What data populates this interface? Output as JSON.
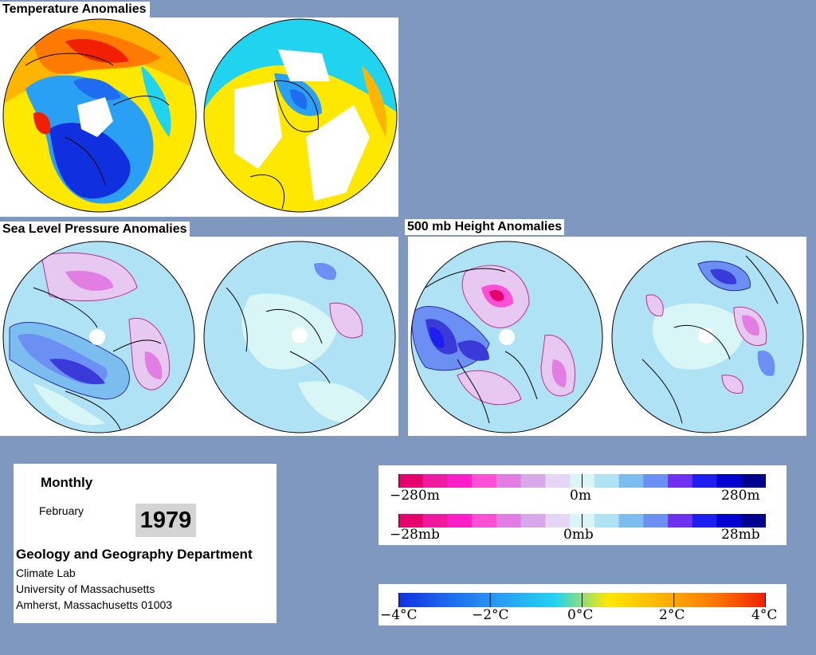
{
  "titles": {
    "temperature": "Temperature Anomalies",
    "slp": "Sea Level Pressure Anomalies",
    "height500": "500 mb Height Anomalies"
  },
  "info": {
    "period": "Monthly",
    "month": "February",
    "year": "1979",
    "department": "Geology and Geography Department",
    "lab": "Climate Lab",
    "university": "University of Massachusetts",
    "address": "Amherst, Massachusetts 01003"
  },
  "legend_height": {
    "labels": [
      "−280m",
      "0m",
      "280m"
    ],
    "colors": [
      "#e6006e",
      "#f01aa0",
      "#ff1fc8",
      "#ff4fd6",
      "#e27ee3",
      "#d9a8ea",
      "#e5d6f6",
      "#d8f6f6",
      "#aee2f4",
      "#7cbdf0",
      "#6b8ff2",
      "#7030f0",
      "#1e1ef0",
      "#0000d0",
      "#000090"
    ]
  },
  "legend_pressure": {
    "labels": [
      "−28mb",
      "0mb",
      "28mb"
    ],
    "colors": [
      "#e6006e",
      "#f01aa0",
      "#ff1fc8",
      "#ff4fd6",
      "#e27ee3",
      "#d9a8ea",
      "#e5d6f6",
      "#d8f6f6",
      "#aee2f4",
      "#7cbdf0",
      "#6b8ff2",
      "#7030f0",
      "#1e1ef0",
      "#0000d0",
      "#000090"
    ]
  },
  "legend_temperature": {
    "labels": [
      "−4°C",
      "−2°C",
      "0°C",
      "2°C",
      "4°C"
    ],
    "colors": [
      "#1030e0",
      "#1e6cf0",
      "#2aa0f4",
      "#20d4f0",
      "#ffe800",
      "#ffb400",
      "#ff7a00",
      "#f02000"
    ]
  },
  "palette": {
    "background": "#7f98c0",
    "ocean_light": "#d8f6f6",
    "blue_1": "#aee2f4",
    "blue_2": "#7cbdf0",
    "blue_3": "#3a3ad8",
    "pink_1": "#e6c8f0",
    "pink_2": "#ff4fd6",
    "temp_cold": "#1030e0",
    "temp_cool": "#2aa0f4",
    "temp_warm": "#ffb400",
    "temp_hot": "#f02000"
  }
}
